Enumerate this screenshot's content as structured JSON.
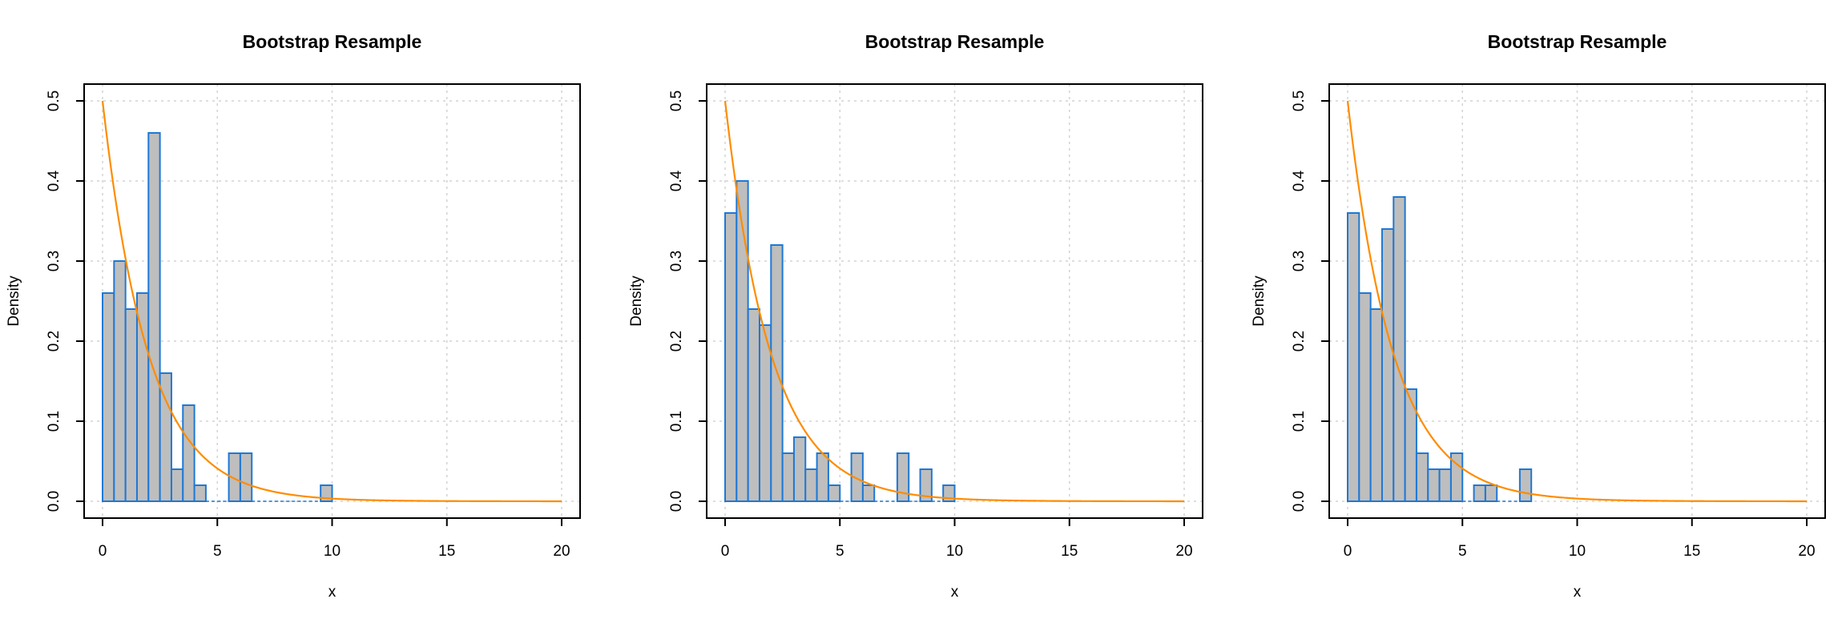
{
  "colors": {
    "bar_fill": "#bebebe",
    "bar_border": "#1f78d4",
    "curve": "#ff8c00",
    "grid": "#d3d3d3",
    "axis": "#000000"
  },
  "chart_data": [
    {
      "type": "bar",
      "title": "Bootstrap Resample",
      "xlabel": "x",
      "ylabel": "Density",
      "xlim": [
        0,
        20
      ],
      "ylim": [
        0,
        0.5
      ],
      "x_ticks": [
        "0",
        "5",
        "10",
        "15",
        "20"
      ],
      "y_ticks": [
        "0.0",
        "0.1",
        "0.2",
        "0.3",
        "0.4",
        "0.5"
      ],
      "grid": true,
      "bin_width": 0.5,
      "bin_starts": [
        0,
        0.5,
        1,
        1.5,
        2,
        2.5,
        3,
        3.5,
        4,
        4.5,
        5,
        5.5,
        6,
        6.5,
        7,
        7.5,
        8,
        8.5,
        9,
        9.5
      ],
      "values": [
        0.26,
        0.3,
        0.24,
        0.26,
        0.46,
        0.16,
        0.04,
        0.12,
        0.02,
        0,
        0,
        0.06,
        0.06,
        0,
        0,
        0,
        0,
        0,
        0,
        0.02
      ],
      "curve": {
        "type": "exponential_density",
        "rate": 0.5
      }
    },
    {
      "type": "bar",
      "title": "Bootstrap Resample",
      "xlabel": "x",
      "ylabel": "Density",
      "xlim": [
        0,
        20
      ],
      "ylim": [
        0,
        0.5
      ],
      "x_ticks": [
        "0",
        "5",
        "10",
        "15",
        "20"
      ],
      "y_ticks": [
        "0.0",
        "0.1",
        "0.2",
        "0.3",
        "0.4",
        "0.5"
      ],
      "grid": true,
      "bin_width": 0.5,
      "bin_starts": [
        0,
        0.5,
        1,
        1.5,
        2,
        2.5,
        3,
        3.5,
        4,
        4.5,
        5,
        5.5,
        6,
        6.5,
        7,
        7.5,
        8,
        8.5,
        9,
        9.5
      ],
      "values": [
        0.36,
        0.4,
        0.24,
        0.22,
        0.32,
        0.06,
        0.08,
        0.04,
        0.06,
        0.02,
        0,
        0.06,
        0.02,
        0,
        0,
        0.06,
        0,
        0.04,
        0,
        0.02
      ],
      "curve": {
        "type": "exponential_density",
        "rate": 0.5
      }
    },
    {
      "type": "bar",
      "title": "Bootstrap Resample",
      "xlabel": "x",
      "ylabel": "Density",
      "xlim": [
        0,
        20
      ],
      "ylim": [
        0,
        0.5
      ],
      "x_ticks": [
        "0",
        "5",
        "10",
        "15",
        "20"
      ],
      "y_ticks": [
        "0.0",
        "0.1",
        "0.2",
        "0.3",
        "0.4",
        "0.5"
      ],
      "grid": true,
      "bin_width": 0.5,
      "bin_starts": [
        0,
        0.5,
        1,
        1.5,
        2,
        2.5,
        3,
        3.5,
        4,
        4.5,
        5,
        5.5,
        6,
        6.5,
        7,
        7.5
      ],
      "values": [
        0.36,
        0.26,
        0.24,
        0.34,
        0.38,
        0.14,
        0.06,
        0.04,
        0.04,
        0.06,
        0,
        0.02,
        0.02,
        0,
        0,
        0.04
      ],
      "curve": {
        "type": "exponential_density",
        "rate": 0.5
      }
    }
  ]
}
